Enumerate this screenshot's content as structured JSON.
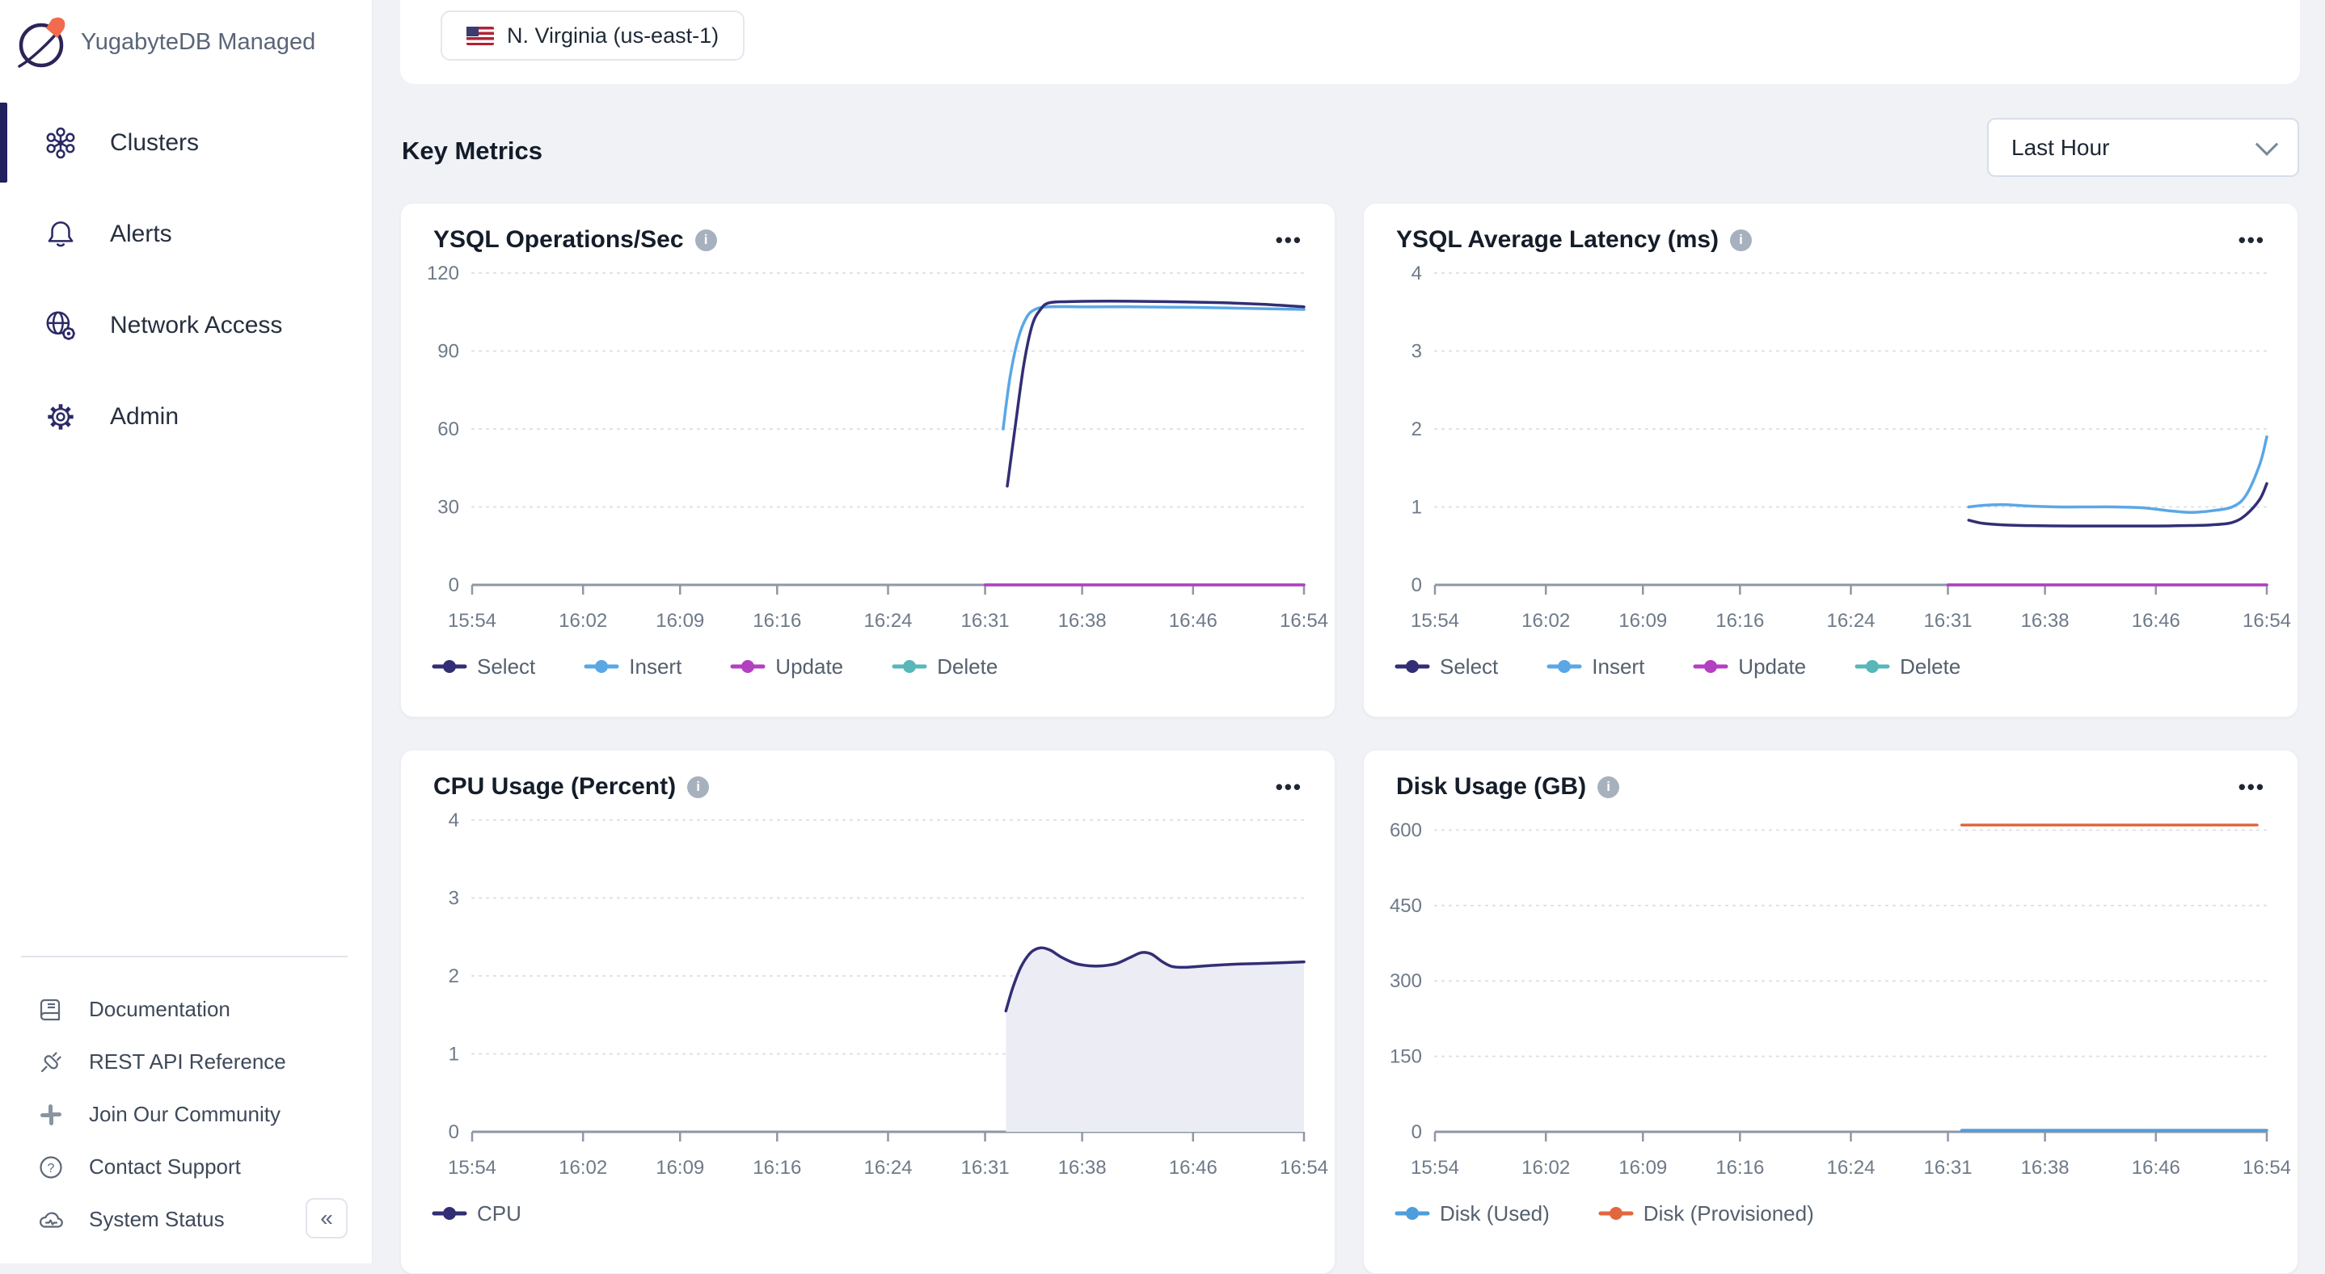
{
  "sidebar": {
    "brand": "YugabyteDB Managed",
    "logo_icon": "yugabyte-planet-icon",
    "nav": [
      {
        "label": "Clusters",
        "icon": "clusters-icon",
        "active": true
      },
      {
        "label": "Alerts",
        "icon": "bell-icon",
        "active": false
      },
      {
        "label": "Network Access",
        "icon": "globe-gear-icon",
        "active": false
      },
      {
        "label": "Admin",
        "icon": "gear-icon",
        "active": false
      }
    ],
    "utility": [
      {
        "label": "Documentation",
        "icon": "book-icon"
      },
      {
        "label": "REST API Reference",
        "icon": "plug-icon"
      },
      {
        "label": "Join Our Community",
        "icon": "slack-icon"
      },
      {
        "label": "Contact Support",
        "icon": "help-circle-icon"
      },
      {
        "label": "System Status",
        "icon": "cloud-status-icon"
      }
    ],
    "collapse_label": "«"
  },
  "topbar": {
    "region_label": "N. Virginia (us-east-1)",
    "flag_icon": "us-flag-icon"
  },
  "header": {
    "title": "Key Metrics",
    "time_range_value": "Last Hour"
  },
  "ui": {
    "more_label": "•••",
    "info_label": "i"
  },
  "colors": {
    "select_navy": "#322e75",
    "insert_blue": "#5aa7e6",
    "update_magenta": "#b33fc1",
    "delete_teal": "#57b7b9",
    "cpu_navy": "#322e75",
    "cpu_fill": "#ececf5",
    "disk_used_blue": "#4d9edd",
    "disk_provisioned_orange": "#e2673e",
    "page_bg": "#f0f2f6"
  },
  "chart_data": [
    {
      "type": "line",
      "title": "YSQL Operations/Sec",
      "xlabel": "",
      "ylabel": "",
      "x_domain": [
        0,
        60
      ],
      "x_tick_pos": [
        0,
        8,
        15,
        22,
        30,
        37,
        44,
        52,
        60
      ],
      "x_tick_labels": [
        "15:54",
        "16:02",
        "16:09",
        "16:16",
        "16:24",
        "16:31",
        "16:38",
        "16:46",
        "16:54"
      ],
      "ylim": [
        0,
        120
      ],
      "y_ticks": [
        0,
        30,
        60,
        90,
        120
      ],
      "grid": "dotted-horizontal",
      "legend_position": "bottom",
      "series": [
        {
          "name": "Select",
          "color": "#322e75",
          "points": [
            [
              38.6,
              38
            ],
            [
              39.2,
              62
            ],
            [
              39.8,
              85
            ],
            [
              40.4,
              100
            ],
            [
              41,
              106
            ],
            [
              41.6,
              108.5
            ],
            [
              43,
              109
            ],
            [
              46,
              109.2
            ],
            [
              50,
              109
            ],
            [
              54,
              108.6
            ],
            [
              57,
              108
            ],
            [
              60,
              107
            ]
          ]
        },
        {
          "name": "Insert",
          "color": "#5aa7e6",
          "points": [
            [
              38.3,
              60
            ],
            [
              38.8,
              80
            ],
            [
              39.4,
              95
            ],
            [
              40,
              103
            ],
            [
              40.6,
              106
            ],
            [
              41.5,
              107
            ],
            [
              44,
              107
            ],
            [
              48,
              107
            ],
            [
              52,
              106.8
            ],
            [
              56,
              106.4
            ],
            [
              60,
              106
            ]
          ]
        },
        {
          "name": "Update",
          "color": "#b33fc1",
          "points": [
            [
              37,
              0
            ],
            [
              60,
              0
            ]
          ]
        },
        {
          "name": "Delete",
          "color": "#57b7b9",
          "points": [
            [
              37,
              0
            ],
            [
              60,
              0
            ]
          ]
        }
      ]
    },
    {
      "type": "line",
      "title": "YSQL Average Latency (ms)",
      "xlabel": "",
      "ylabel": "",
      "x_domain": [
        0,
        60
      ],
      "x_tick_pos": [
        0,
        8,
        15,
        22,
        30,
        37,
        44,
        52,
        60
      ],
      "x_tick_labels": [
        "15:54",
        "16:02",
        "16:09",
        "16:16",
        "16:24",
        "16:31",
        "16:38",
        "16:46",
        "16:54"
      ],
      "ylim": [
        0,
        4
      ],
      "y_ticks": [
        0,
        1,
        2,
        3,
        4
      ],
      "grid": "dotted-horizontal",
      "legend_position": "bottom",
      "series": [
        {
          "name": "Select",
          "color": "#322e75",
          "points": [
            [
              38.5,
              0.83
            ],
            [
              39.5,
              0.79
            ],
            [
              41,
              0.77
            ],
            [
              43,
              0.76
            ],
            [
              46,
              0.755
            ],
            [
              49,
              0.755
            ],
            [
              52,
              0.755
            ],
            [
              54,
              0.76
            ],
            [
              56,
              0.77
            ],
            [
              57.5,
              0.8
            ],
            [
              58.5,
              0.9
            ],
            [
              59.5,
              1.1
            ],
            [
              60,
              1.3
            ]
          ]
        },
        {
          "name": "Insert",
          "color": "#5aa7e6",
          "points": [
            [
              38.5,
              1.0
            ],
            [
              39.5,
              1.02
            ],
            [
              41,
              1.03
            ],
            [
              43,
              1.01
            ],
            [
              45,
              1.0
            ],
            [
              47,
              1.0
            ],
            [
              49,
              1.0
            ],
            [
              51,
              0.99
            ],
            [
              53,
              0.95
            ],
            [
              54.5,
              0.93
            ],
            [
              56,
              0.95
            ],
            [
              57.5,
              1.0
            ],
            [
              58.5,
              1.15
            ],
            [
              59.5,
              1.55
            ],
            [
              60,
              1.9
            ]
          ]
        },
        {
          "name": "Update",
          "color": "#b33fc1",
          "points": [
            [
              37,
              0
            ],
            [
              60,
              0
            ]
          ]
        },
        {
          "name": "Delete",
          "color": "#57b7b9",
          "points": [
            [
              37,
              0
            ],
            [
              60,
              0
            ]
          ]
        }
      ]
    },
    {
      "type": "area",
      "title": "CPU Usage (Percent)",
      "xlabel": "",
      "ylabel": "",
      "x_domain": [
        0,
        60
      ],
      "x_tick_pos": [
        0,
        8,
        15,
        22,
        30,
        37,
        44,
        52,
        60
      ],
      "x_tick_labels": [
        "15:54",
        "16:02",
        "16:09",
        "16:16",
        "16:24",
        "16:31",
        "16:38",
        "16:46",
        "16:54"
      ],
      "ylim": [
        0,
        4
      ],
      "y_ticks": [
        0,
        1,
        2,
        3,
        4
      ],
      "grid": "dotted-horizontal",
      "legend_position": "bottom",
      "series": [
        {
          "name": "CPU",
          "color": "#322e75",
          "fill": "#ececf5",
          "points": [
            [
              38.5,
              1.55
            ],
            [
              39,
              1.85
            ],
            [
              39.6,
              2.12
            ],
            [
              40.3,
              2.3
            ],
            [
              41,
              2.36
            ],
            [
              41.7,
              2.33
            ],
            [
              42.5,
              2.24
            ],
            [
              43.5,
              2.16
            ],
            [
              44.5,
              2.13
            ],
            [
              45.5,
              2.13
            ],
            [
              46.5,
              2.16
            ],
            [
              47.5,
              2.24
            ],
            [
              48.3,
              2.3
            ],
            [
              49,
              2.28
            ],
            [
              49.8,
              2.18
            ],
            [
              50.5,
              2.12
            ],
            [
              51.5,
              2.11
            ],
            [
              53,
              2.13
            ],
            [
              55,
              2.15
            ],
            [
              57,
              2.16
            ],
            [
              60,
              2.18
            ]
          ]
        }
      ]
    },
    {
      "type": "line",
      "title": "Disk Usage (GB)",
      "xlabel": "",
      "ylabel": "",
      "x_domain": [
        0,
        60
      ],
      "x_tick_pos": [
        0,
        8,
        15,
        22,
        30,
        37,
        44,
        52,
        60
      ],
      "x_tick_labels": [
        "15:54",
        "16:02",
        "16:09",
        "16:16",
        "16:24",
        "16:31",
        "16:38",
        "16:46",
        "16:54"
      ],
      "ylim": [
        0,
        620
      ],
      "y_ticks": [
        0,
        150,
        300,
        450,
        600
      ],
      "grid": "dotted-horizontal",
      "legend_position": "bottom",
      "series": [
        {
          "name": "Disk (Used)",
          "color": "#4d9edd",
          "points": [
            [
              38,
              3
            ],
            [
              60,
              3
            ]
          ]
        },
        {
          "name": "Disk (Provisioned)",
          "color": "#e2673e",
          "points": [
            [
              38,
              610
            ],
            [
              59.3,
              610
            ]
          ]
        }
      ]
    }
  ]
}
